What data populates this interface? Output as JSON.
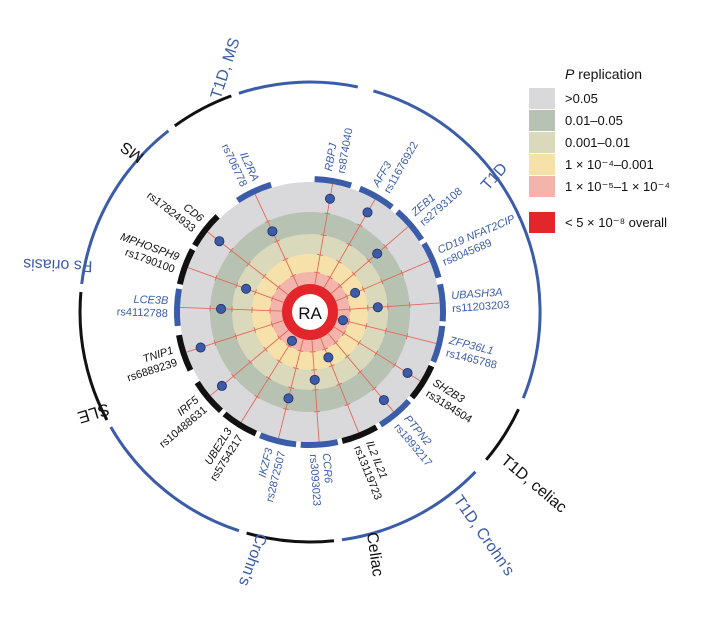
{
  "center_label": "RA",
  "legend": {
    "title_italic": "P",
    "title_rest": " replication",
    "items": [
      {
        "label": ">0.05",
        "color": "#d9d9dc"
      },
      {
        "label": "0.01–0.05",
        "color": "#b7c2b2"
      },
      {
        "label": "0.001–0.01",
        "color": "#dad9bb"
      },
      {
        "label": "1 × 10⁻⁴–0.001",
        "color": "#f7e1aa"
      },
      {
        "label": "1 × 10⁻⁵–1 × 10⁻⁴",
        "color": "#f3b4ac"
      }
    ],
    "overall": {
      "label": "< 5 × 10⁻⁸ overall",
      "color": "#e2262b"
    }
  },
  "colors": {
    "blue": "#3b5ca8",
    "black": "#111111",
    "spoke": "#e06a5a",
    "dot": "#3c5ba7"
  },
  "loci": [
    {
      "gene": "RBPJ",
      "snp": "rs874040",
      "angle": -80,
      "color": "blue",
      "bar": "blue",
      "ring": 0
    },
    {
      "gene": "AFF3",
      "snp": "rs11676922",
      "angle": -60,
      "color": "blue",
      "bar": "blue",
      "ring": 0
    },
    {
      "gene": "ZEB1",
      "snp": "rs2793108",
      "angle": -41,
      "color": "blue",
      "bar": "blue",
      "ring": 1
    },
    {
      "gene": "CD19 NFAT2CIP",
      "snp": "rs8045689",
      "angle": -23,
      "color": "blue",
      "bar": "blue",
      "ring": 3
    },
    {
      "gene": "UBASH3A",
      "snp": "rs11203203",
      "angle": -4,
      "color": "blue",
      "bar": "blue",
      "ring": 2
    },
    {
      "gene": "ZFP36L1",
      "snp": "rs1465788",
      "angle": 14,
      "color": "blue",
      "bar": "blue",
      "ring": 4
    },
    {
      "gene": "SH2B3",
      "snp": "rs3184504",
      "angle": 32,
      "color": "black",
      "bar": "black",
      "ring": 0
    },
    {
      "gene": "PTPN2",
      "snp": "rs1893217",
      "angle": 50,
      "color": "blue",
      "bar": "blue",
      "ring": 0
    },
    {
      "gene": "IL2 IL21",
      "snp": "rs13119723",
      "angle": 68,
      "color": "black",
      "bar": "black",
      "ring": 3
    },
    {
      "gene": "CCR6",
      "snp": "rs3093023",
      "angle": 86,
      "color": "blue",
      "bar": "blue",
      "ring": 2
    },
    {
      "gene": "IKZF3",
      "snp": "rs2872507",
      "angle": 104,
      "color": "blue",
      "bar": "blue",
      "ring": 1
    },
    {
      "gene": "UBE2L3",
      "snp": "rs5754217",
      "angle": 122,
      "color": "black",
      "bar": "black",
      "ring": 4
    },
    {
      "gene": "IRF5",
      "snp": "rs10488631",
      "angle": 140,
      "color": "black",
      "bar": "black",
      "ring": 0
    },
    {
      "gene": "TNIP1",
      "snp": "rs6889239",
      "angle": 162,
      "color": "black",
      "bar": "black",
      "ring": 0
    },
    {
      "gene": "LCE3B",
      "snp": "rs4112788",
      "angle": 182,
      "color": "blue",
      "bar": "blue",
      "ring": 1
    },
    {
      "gene": "MPHOSPH9",
      "snp": "rs1790100",
      "angle": 200,
      "color": "black",
      "bar": "black",
      "ring": 2
    },
    {
      "gene": "CD6",
      "snp": "rs17824933",
      "angle": 218,
      "color": "black",
      "bar": "black",
      "ring": 0
    },
    {
      "gene": "IL2RA",
      "snp": "rs706778",
      "angle": 245,
      "color": "blue",
      "bar": "blue",
      "ring": 1
    }
  ],
  "diseases": [
    {
      "label": "T1D, MS",
      "color": "blue"
    },
    {
      "label": "T1D",
      "color": "blue"
    },
    {
      "label": "T1D, celiac",
      "color": "black"
    },
    {
      "label": "T1D, Crohn's",
      "color": "blue"
    },
    {
      "label": "Celiac",
      "color": "black"
    },
    {
      "label": "Crohn's",
      "color": "blue"
    },
    {
      "label": "SLE",
      "color": "black"
    },
    {
      "label": "Ps oriasis",
      "color": "blue"
    },
    {
      "label": "MS",
      "color": "black"
    }
  ]
}
